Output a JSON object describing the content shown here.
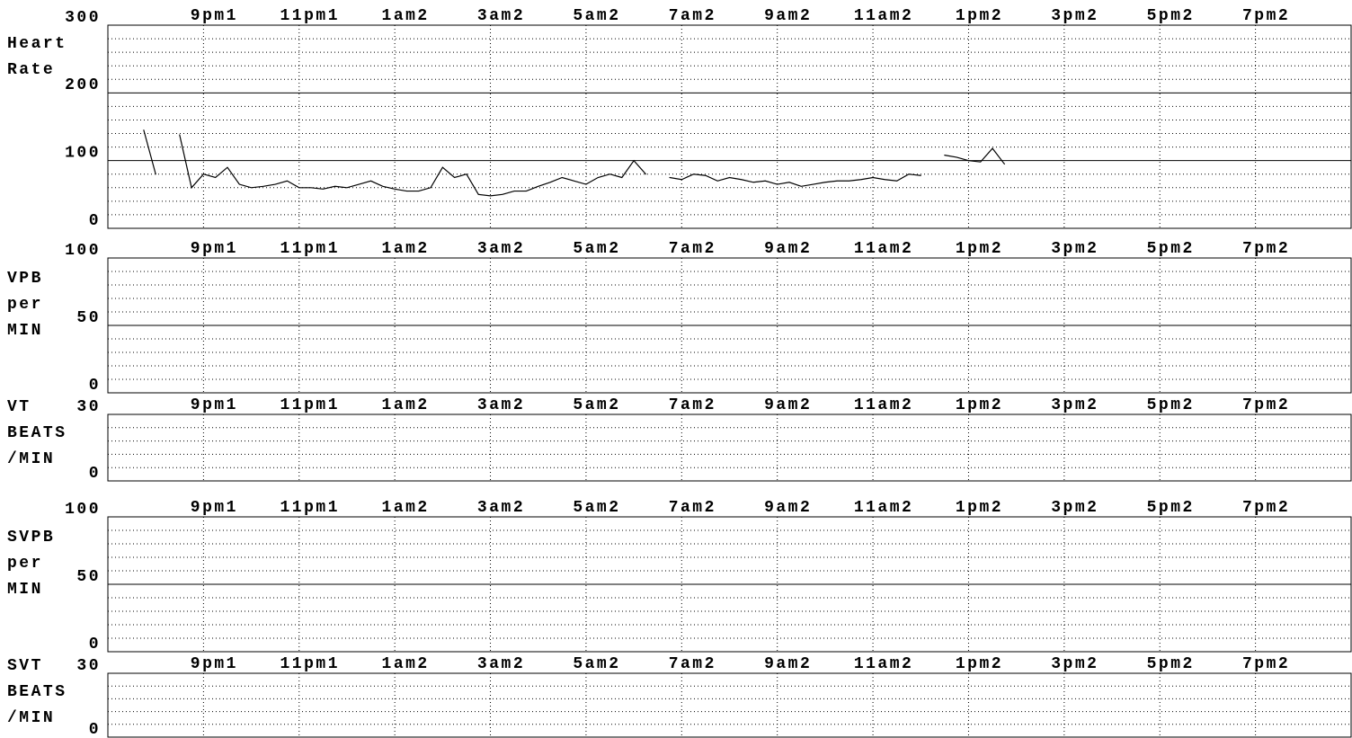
{
  "chart_data": [
    {
      "type": "line",
      "ylabel": [
        "Heart",
        "Rate"
      ],
      "ylim": [
        0,
        300
      ],
      "yticks": [
        0,
        100,
        200,
        300
      ],
      "yminor": [
        20,
        40,
        60,
        80,
        120,
        140,
        160,
        180,
        220,
        240,
        260,
        280
      ],
      "xlim": [
        -2,
        24
      ],
      "xticks": [
        {
          "value": 0,
          "label": "9pm1"
        },
        {
          "value": 2,
          "label": "11pm1"
        },
        {
          "value": 4,
          "label": "1am2"
        },
        {
          "value": 6,
          "label": "3am2"
        },
        {
          "value": 8,
          "label": "5am2"
        },
        {
          "value": 10,
          "label": "7am2"
        },
        {
          "value": 12,
          "label": "9am2"
        },
        {
          "value": 14,
          "label": "11am2"
        },
        {
          "value": 16,
          "label": "1pm2"
        },
        {
          "value": 18,
          "label": "3pm2"
        },
        {
          "value": 20,
          "label": "5pm2"
        },
        {
          "value": 22,
          "label": "7pm2"
        }
      ],
      "x": [
        -1.5,
        -1.25,
        -1,
        -0.75,
        -0.5,
        -0.25,
        0,
        0.25,
        0.5,
        0.75,
        1,
        1.25,
        1.5,
        1.75,
        2,
        2.25,
        2.5,
        2.75,
        3,
        3.25,
        3.5,
        3.75,
        4,
        4.25,
        4.5,
        4.75,
        5,
        5.25,
        5.5,
        5.75,
        6,
        6.25,
        6.5,
        6.75,
        7,
        7.25,
        7.5,
        7.75,
        8,
        8.25,
        8.5,
        8.75,
        9,
        9.25,
        9.5,
        9.75,
        10,
        10.25,
        10.5,
        10.75,
        11,
        11.25,
        11.5,
        11.75,
        12,
        12.25,
        12.5,
        12.75,
        13,
        13.25,
        13.5,
        13.75,
        14,
        14.25,
        14.5,
        14.75,
        15,
        15.25,
        15.5,
        15.75,
        16,
        16.25,
        16.5,
        16.75
      ],
      "series": [
        {
          "color": "#000000",
          "values": [
            null,
            145,
            80,
            null,
            138,
            60,
            80,
            75,
            90,
            65,
            60,
            62,
            65,
            70,
            60,
            60,
            58,
            62,
            60,
            65,
            70,
            62,
            58,
            55,
            55,
            60,
            90,
            75,
            80,
            50,
            48,
            50,
            55,
            55,
            62,
            68,
            75,
            70,
            65,
            75,
            80,
            75,
            100,
            80,
            null,
            75,
            72,
            80,
            78,
            70,
            75,
            72,
            68,
            70,
            65,
            68,
            62,
            65,
            68,
            70,
            70,
            72,
            75,
            72,
            70,
            80,
            78,
            null,
            108,
            105,
            100,
            98,
            118,
            95
          ]
        }
      ]
    },
    {
      "type": "line",
      "ylabel": [
        "VPB",
        "per",
        "MIN"
      ],
      "ylim": [
        0,
        100
      ],
      "yticks": [
        0,
        50,
        100
      ],
      "yminor": [
        10,
        20,
        30,
        40,
        60,
        70,
        80,
        90
      ],
      "xlim": [
        -2,
        24
      ],
      "xticks": [
        {
          "value": 0,
          "label": "9pm1"
        },
        {
          "value": 2,
          "label": "11pm1"
        },
        {
          "value": 4,
          "label": "1am2"
        },
        {
          "value": 6,
          "label": "3am2"
        },
        {
          "value": 8,
          "label": "5am2"
        },
        {
          "value": 10,
          "label": "7am2"
        },
        {
          "value": 12,
          "label": "9am2"
        },
        {
          "value": 14,
          "label": "11am2"
        },
        {
          "value": 16,
          "label": "1pm2"
        },
        {
          "value": 18,
          "label": "3pm2"
        },
        {
          "value": 20,
          "label": "5pm2"
        },
        {
          "value": 22,
          "label": "7pm2"
        }
      ]
    },
    {
      "type": "line",
      "ylabel": [
        "VT",
        "BEATS",
        "/MIN"
      ],
      "ylim": [
        0,
        30
      ],
      "yticks": [
        0,
        30
      ],
      "yminor": [
        6,
        12,
        18,
        24
      ],
      "xlim": [
        -2,
        24
      ],
      "xticks": [
        {
          "value": 0,
          "label": "9pm1"
        },
        {
          "value": 2,
          "label": "11pm1"
        },
        {
          "value": 4,
          "label": "1am2"
        },
        {
          "value": 6,
          "label": "3am2"
        },
        {
          "value": 8,
          "label": "5am2"
        },
        {
          "value": 10,
          "label": "7am2"
        },
        {
          "value": 12,
          "label": "9am2"
        },
        {
          "value": 14,
          "label": "11am2"
        },
        {
          "value": 16,
          "label": "1pm2"
        },
        {
          "value": 18,
          "label": "3pm2"
        },
        {
          "value": 20,
          "label": "5pm2"
        },
        {
          "value": 22,
          "label": "7pm2"
        }
      ]
    },
    {
      "type": "line",
      "ylabel": [
        "SVPB",
        "per",
        "MIN"
      ],
      "ylim": [
        0,
        100
      ],
      "yticks": [
        0,
        50,
        100
      ],
      "yminor": [
        10,
        20,
        30,
        40,
        60,
        70,
        80,
        90
      ],
      "xlim": [
        -2,
        24
      ],
      "xticks": [
        {
          "value": 0,
          "label": "9pm1"
        },
        {
          "value": 2,
          "label": "11pm1"
        },
        {
          "value": 4,
          "label": "1am2"
        },
        {
          "value": 6,
          "label": "3am2"
        },
        {
          "value": 8,
          "label": "5am2"
        },
        {
          "value": 10,
          "label": "7am2"
        },
        {
          "value": 12,
          "label": "9am2"
        },
        {
          "value": 14,
          "label": "11am2"
        },
        {
          "value": 16,
          "label": "1pm2"
        },
        {
          "value": 18,
          "label": "3pm2"
        },
        {
          "value": 20,
          "label": "5pm2"
        },
        {
          "value": 22,
          "label": "7pm2"
        }
      ]
    },
    {
      "type": "line",
      "ylabel": [
        "SVT",
        "BEATS",
        "/MIN"
      ],
      "ylim": [
        0,
        30
      ],
      "yticks": [
        0,
        30
      ],
      "yminor": [
        6,
        12,
        18,
        24
      ],
      "xlim": [
        -2,
        24
      ],
      "xticks": [
        {
          "value": 0,
          "label": "9pm1"
        },
        {
          "value": 2,
          "label": "11pm1"
        },
        {
          "value": 4,
          "label": "1am2"
        },
        {
          "value": 6,
          "label": "3am2"
        },
        {
          "value": 8,
          "label": "5am2"
        },
        {
          "value": 10,
          "label": "7am2"
        },
        {
          "value": 12,
          "label": "9am2"
        },
        {
          "value": 14,
          "label": "11am2"
        },
        {
          "value": 16,
          "label": "1pm2"
        },
        {
          "value": 18,
          "label": "3pm2"
        },
        {
          "value": 20,
          "label": "5pm2"
        },
        {
          "value": 22,
          "label": "7pm2"
        }
      ]
    }
  ]
}
